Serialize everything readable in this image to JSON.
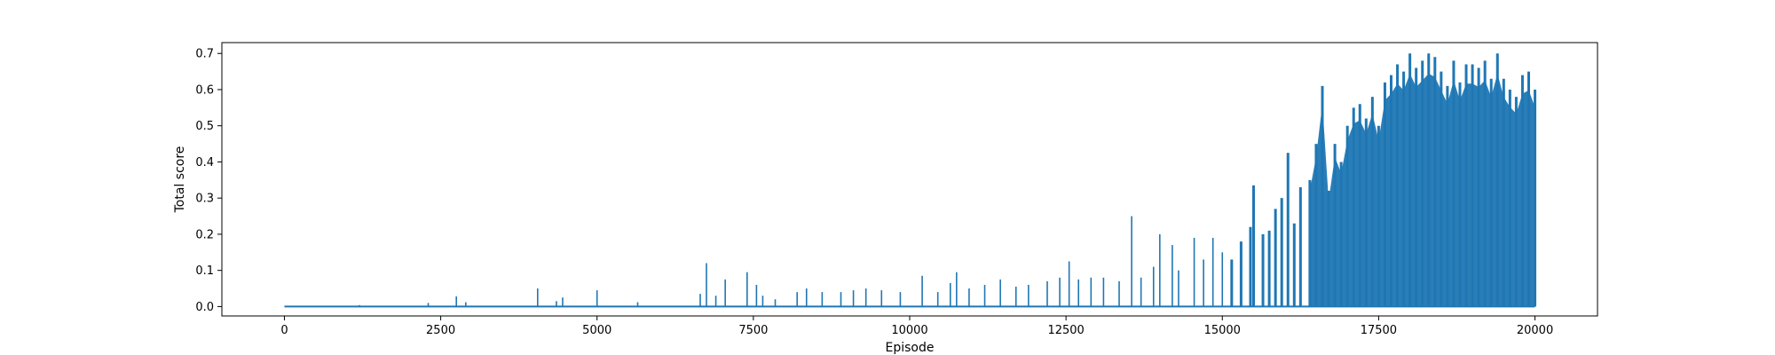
{
  "chart_data": {
    "type": "line",
    "xlabel": "Episode",
    "ylabel": "Total score",
    "xlim": [
      -1000,
      21000
    ],
    "ylim": [
      -0.026,
      0.73
    ],
    "grid": false,
    "color": "#1f77b4",
    "x_ticks": [
      0,
      2500,
      5000,
      7500,
      10000,
      12500,
      15000,
      17500,
      20000
    ],
    "x_tick_labels": [
      "0",
      "2500",
      "5000",
      "7500",
      "10000",
      "12500",
      "15000",
      "17500",
      "20000"
    ],
    "y_ticks": [
      0.0,
      0.1,
      0.2,
      0.3,
      0.4,
      0.5,
      0.6,
      0.7
    ],
    "y_tick_labels": [
      "0.0",
      "0.1",
      "0.2",
      "0.3",
      "0.4",
      "0.5",
      "0.6",
      "0.7"
    ],
    "series": [
      {
        "x_range": [
          0,
          20000
        ],
        "baseline": 0.0,
        "peaks": [
          [
            1200,
            0.004
          ],
          [
            2300,
            0.01
          ],
          [
            2750,
            0.028
          ],
          [
            2900,
            0.012
          ],
          [
            4050,
            0.05
          ],
          [
            4350,
            0.015
          ],
          [
            4450,
            0.025
          ],
          [
            5000,
            0.045
          ],
          [
            5650,
            0.012
          ],
          [
            6650,
            0.035
          ],
          [
            6750,
            0.12
          ],
          [
            6900,
            0.03
          ],
          [
            7050,
            0.075
          ],
          [
            7400,
            0.095
          ],
          [
            7550,
            0.06
          ],
          [
            7650,
            0.03
          ],
          [
            7850,
            0.02
          ],
          [
            8200,
            0.04
          ],
          [
            8350,
            0.05
          ],
          [
            8600,
            0.04
          ],
          [
            8900,
            0.04
          ],
          [
            9100,
            0.045
          ],
          [
            9300,
            0.05
          ],
          [
            9550,
            0.045
          ],
          [
            9850,
            0.04
          ],
          [
            10200,
            0.085
          ],
          [
            10450,
            0.04
          ],
          [
            10650,
            0.065
          ],
          [
            10750,
            0.095
          ],
          [
            10950,
            0.05
          ],
          [
            11200,
            0.06
          ],
          [
            11450,
            0.075
          ],
          [
            11700,
            0.055
          ],
          [
            11900,
            0.06
          ],
          [
            12200,
            0.07
          ],
          [
            12400,
            0.08
          ],
          [
            12550,
            0.125
          ],
          [
            12700,
            0.075
          ],
          [
            12900,
            0.08
          ],
          [
            13100,
            0.08
          ],
          [
            13350,
            0.07
          ],
          [
            13550,
            0.25
          ],
          [
            13700,
            0.08
          ],
          [
            13900,
            0.11
          ],
          [
            14000,
            0.2
          ],
          [
            14200,
            0.17
          ],
          [
            14300,
            0.1
          ],
          [
            14550,
            0.19
          ],
          [
            14700,
            0.13
          ],
          [
            14850,
            0.19
          ],
          [
            15000,
            0.15
          ],
          [
            15150,
            0.13
          ],
          [
            15300,
            0.18
          ],
          [
            15450,
            0.22
          ],
          [
            15500,
            0.335
          ],
          [
            15650,
            0.2
          ],
          [
            15750,
            0.21
          ],
          [
            15850,
            0.27
          ],
          [
            15950,
            0.3
          ],
          [
            16050,
            0.425
          ],
          [
            16150,
            0.23
          ],
          [
            16250,
            0.33
          ],
          [
            16400,
            0.35
          ],
          [
            16500,
            0.45
          ],
          [
            16600,
            0.61
          ],
          [
            16700,
            0.32
          ],
          [
            16800,
            0.45
          ],
          [
            16900,
            0.4
          ],
          [
            17000,
            0.5
          ],
          [
            17100,
            0.55
          ],
          [
            17200,
            0.56
          ],
          [
            17300,
            0.52
          ],
          [
            17400,
            0.58
          ],
          [
            17500,
            0.5
          ],
          [
            17600,
            0.62
          ],
          [
            17700,
            0.64
          ],
          [
            17800,
            0.67
          ],
          [
            17900,
            0.65
          ],
          [
            18000,
            0.7
          ],
          [
            18100,
            0.66
          ],
          [
            18200,
            0.68
          ],
          [
            18300,
            0.7
          ],
          [
            18400,
            0.69
          ],
          [
            18500,
            0.65
          ],
          [
            18600,
            0.61
          ],
          [
            18700,
            0.68
          ],
          [
            18800,
            0.62
          ],
          [
            18900,
            0.67
          ],
          [
            19000,
            0.67
          ],
          [
            19100,
            0.66
          ],
          [
            19200,
            0.68
          ],
          [
            19300,
            0.63
          ],
          [
            19400,
            0.7
          ],
          [
            19500,
            0.63
          ],
          [
            19600,
            0.6
          ],
          [
            19700,
            0.58
          ],
          [
            19800,
            0.64
          ],
          [
            19900,
            0.65
          ],
          [
            20000,
            0.6
          ]
        ]
      }
    ]
  }
}
